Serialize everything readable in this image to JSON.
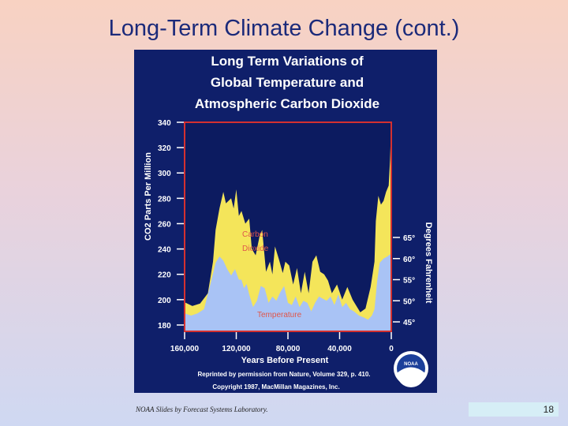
{
  "slide": {
    "title": "Long-Term Climate Change (cont.)",
    "footer_credit": "NOAA Slides by Forecast Systems Laboratory.",
    "page_number": "18"
  },
  "chart_data": {
    "type": "area",
    "title_lines": [
      "Long Term Variations of",
      "Global Temperature and",
      "Atmospheric Carbon Dioxide"
    ],
    "xlabel": "Years Before Present",
    "x_ticks": [
      "160,000",
      "120,000",
      "80,000",
      "40,000",
      "0"
    ],
    "ylabel_left": "CO2 Parts Per Million",
    "y_left_ticks": [
      "340",
      "320",
      "300",
      "280",
      "260",
      "240",
      "220",
      "200",
      "180"
    ],
    "ylim_left": [
      175,
      340
    ],
    "ylabel_right": "Degrees Fahrenheit",
    "y_right_ticks": [
      "65°",
      "60°",
      "55°",
      "50°",
      "45°"
    ],
    "ylim_right": [
      45,
      65
    ],
    "x_reversed": true,
    "series": [
      {
        "name": "Carbon Dioxide",
        "color": "#f4e55a",
        "x": [
          160000,
          154000,
          148000,
          142000,
          138000,
          136000,
          133000,
          130000,
          128000,
          124000,
          122000,
          120000,
          118000,
          116000,
          113000,
          110000,
          108000,
          105000,
          102000,
          100000,
          97000,
          94000,
          92000,
          90000,
          87000,
          84000,
          82000,
          79000,
          76000,
          73000,
          70000,
          67000,
          64000,
          61000,
          58000,
          55000,
          52000,
          49000,
          46000,
          42000,
          38000,
          34000,
          30000,
          27000,
          24000,
          20000,
          16000,
          13000,
          12000,
          10000,
          8000,
          6000,
          4000,
          2000,
          1000,
          0
        ],
        "values": [
          198,
          195,
          197,
          205,
          230,
          255,
          272,
          285,
          276,
          280,
          272,
          287,
          266,
          270,
          260,
          264,
          240,
          235,
          250,
          255,
          222,
          230,
          220,
          242,
          232,
          221,
          230,
          227,
          212,
          225,
          205,
          222,
          205,
          230,
          235,
          222,
          220,
          215,
          205,
          212,
          200,
          210,
          200,
          195,
          190,
          193,
          210,
          230,
          262,
          282,
          275,
          278,
          285,
          290,
          310,
          340
        ]
      },
      {
        "name": "Temperature",
        "color": "#a9c3f5",
        "x": [
          160000,
          155000,
          150000,
          145000,
          140000,
          136000,
          133000,
          130000,
          127000,
          124000,
          121000,
          118000,
          116000,
          114000,
          112000,
          110000,
          107000,
          104000,
          101000,
          98000,
          95000,
          92000,
          89000,
          86000,
          83000,
          80000,
          77000,
          74000,
          71000,
          68000,
          65000,
          62000,
          59000,
          56000,
          53000,
          50000,
          47000,
          44000,
          41000,
          38000,
          35000,
          32000,
          29000,
          25000,
          21000,
          18000,
          15000,
          13000,
          11000,
          9000,
          6000,
          3000,
          1000,
          0
        ],
        "values": [
          47,
          46.5,
          47,
          48,
          54,
          59,
          60.5,
          59.5,
          57.5,
          56,
          57.5,
          55,
          55,
          53,
          54,
          51.5,
          48.5,
          50,
          53.5,
          53,
          49.5,
          51,
          50,
          52,
          53.5,
          49.5,
          49,
          51,
          48.5,
          50,
          49.5,
          47.5,
          49.5,
          51,
          50.5,
          50,
          51,
          49,
          51.5,
          48.5,
          49.5,
          48,
          47.5,
          46.5,
          46,
          45.5,
          46.5,
          48,
          54.5,
          59,
          60,
          60.5,
          61,
          60.5
        ]
      }
    ],
    "annotations": [
      "Carbon",
      "Dioxide",
      "Temperature"
    ],
    "credit_lines": [
      "Reprinted by permission from Nature, Volume 329, p. 410.",
      "Copyright 1987, MacMillan Magazines, Inc."
    ],
    "logo_text": "NOAA"
  }
}
